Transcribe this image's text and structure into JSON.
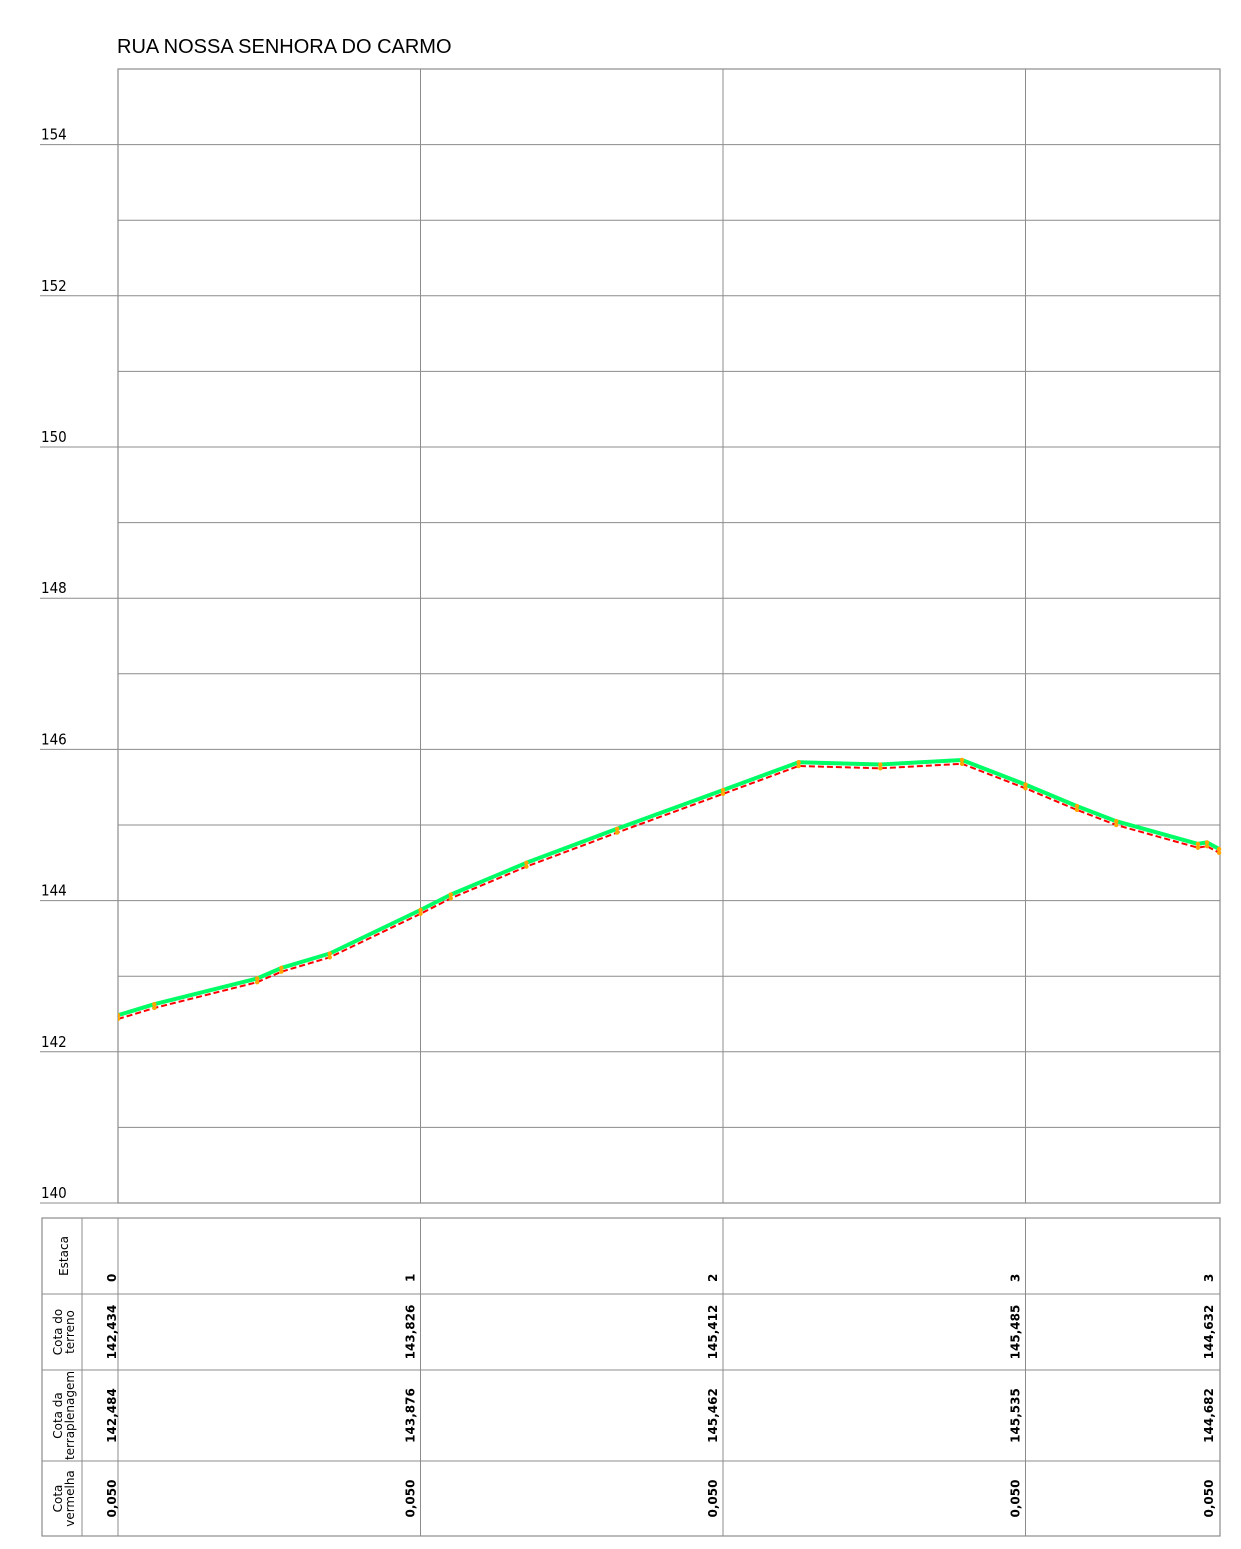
{
  "chart_data": {
    "type": "line",
    "title": "RUA NOSSA SENHORA DO CARMO",
    "y_ticks": [
      "154",
      "152",
      "150",
      "148",
      "146",
      "144",
      "142",
      "140"
    ],
    "ylim": [
      140,
      155
    ],
    "xlim": [
      0,
      3.64
    ],
    "grid": true,
    "colors": {
      "terreno": "#ff0000",
      "terraplenagem": "#00ff66",
      "vertex": "#ffa500",
      "grid": "#8c8c8c"
    },
    "series": [
      {
        "key": "terreno",
        "x": [
          0,
          0.12,
          0.46,
          0.54,
          0.7,
          1.0,
          1.1,
          1.35,
          1.65,
          2.0,
          2.25,
          2.52,
          2.79,
          3.0,
          3.17,
          3.3,
          3.57,
          3.6,
          3.64
        ],
        "values": [
          142.434,
          142.58,
          142.92,
          143.06,
          143.25,
          143.826,
          144.03,
          144.45,
          144.9,
          145.412,
          145.78,
          145.75,
          145.81,
          145.485,
          145.2,
          145.0,
          144.7,
          144.72,
          144.632
        ]
      },
      {
        "key": "terraplenagem",
        "x": [
          0,
          0.12,
          0.46,
          0.54,
          0.7,
          1.0,
          1.1,
          1.35,
          1.65,
          2.0,
          2.25,
          2.52,
          2.79,
          3.0,
          3.17,
          3.3,
          3.57,
          3.6,
          3.64
        ],
        "values": [
          142.484,
          142.63,
          142.97,
          143.11,
          143.3,
          143.876,
          144.08,
          144.5,
          144.95,
          145.462,
          145.83,
          145.8,
          145.86,
          145.535,
          145.25,
          145.05,
          144.75,
          144.77,
          144.682
        ]
      }
    ],
    "table": {
      "row_headers": [
        [
          "Estaca"
        ],
        [
          "Cota do",
          "terreno"
        ],
        [
          "Cota da",
          "terraplenagem"
        ],
        [
          "Cota",
          "vermelha"
        ]
      ],
      "columns": [
        {
          "x": 0,
          "estaca": "0",
          "terreno": "142,434",
          "terraplenagem": "142,484",
          "vermelha": "0,050"
        },
        {
          "x": 1,
          "estaca": "1",
          "terreno": "143,826",
          "terraplenagem": "143,876",
          "vermelha": "0,050"
        },
        {
          "x": 2,
          "estaca": "2",
          "terreno": "145,412",
          "terraplenagem": "145,462",
          "vermelha": "0,050"
        },
        {
          "x": 3,
          "estaca": "3",
          "terreno": "145,485",
          "terraplenagem": "145,535",
          "vermelha": "0,050"
        },
        {
          "x": 3.64,
          "estaca": "3",
          "terreno": "144,632",
          "terraplenagem": "144,682",
          "vermelha": "0,050"
        }
      ]
    }
  }
}
